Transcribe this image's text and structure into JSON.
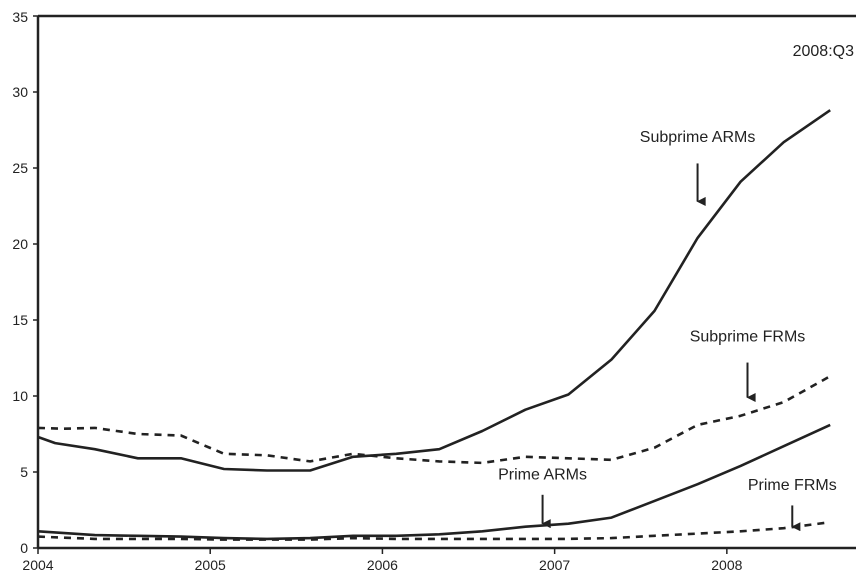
{
  "chart_data": {
    "type": "line",
    "title": "",
    "xlabel": "",
    "ylabel": "",
    "xlim": [
      2004.0,
      2008.75
    ],
    "ylim": [
      0,
      35
    ],
    "grid": false,
    "legend": "none",
    "x_ticks": [
      "2004",
      "2005",
      "2006",
      "2007",
      "2008"
    ],
    "y_ticks": [
      "0",
      "5",
      "10",
      "15",
      "20",
      "25",
      "30",
      "35"
    ],
    "period_label": "2008:Q3",
    "series": [
      {
        "label": "Subprime ARMs",
        "style": "solid",
        "color": "#222222",
        "points": [
          [
            2004.0,
            7.3
          ],
          [
            2004.1,
            6.9
          ],
          [
            2004.33,
            6.5
          ],
          [
            2004.58,
            5.9
          ],
          [
            2004.83,
            5.9
          ],
          [
            2005.08,
            5.2
          ],
          [
            2005.33,
            5.1
          ],
          [
            2005.58,
            5.1
          ],
          [
            2005.83,
            6.0
          ],
          [
            2006.08,
            6.2
          ],
          [
            2006.33,
            6.5
          ],
          [
            2006.58,
            7.7
          ],
          [
            2006.83,
            9.1
          ],
          [
            2007.08,
            10.1
          ],
          [
            2007.33,
            12.4
          ],
          [
            2007.58,
            15.6
          ],
          [
            2007.83,
            20.4
          ],
          [
            2008.08,
            24.1
          ],
          [
            2008.33,
            26.7
          ],
          [
            2008.6,
            28.8
          ]
        ]
      },
      {
        "label": "Subprime FRMs",
        "style": "dashed",
        "color": "#222222",
        "points": [
          [
            2004.0,
            7.9
          ],
          [
            2004.15,
            7.85
          ],
          [
            2004.33,
            7.9
          ],
          [
            2004.58,
            7.5
          ],
          [
            2004.83,
            7.4
          ],
          [
            2005.08,
            6.2
          ],
          [
            2005.33,
            6.1
          ],
          [
            2005.58,
            5.7
          ],
          [
            2005.83,
            6.2
          ],
          [
            2006.08,
            5.9
          ],
          [
            2006.33,
            5.7
          ],
          [
            2006.58,
            5.6
          ],
          [
            2006.83,
            6.0
          ],
          [
            2007.08,
            5.9
          ],
          [
            2007.33,
            5.8
          ],
          [
            2007.58,
            6.6
          ],
          [
            2007.83,
            8.1
          ],
          [
            2008.08,
            8.7
          ],
          [
            2008.33,
            9.6
          ],
          [
            2008.6,
            11.3
          ]
        ]
      },
      {
        "label": "Prime ARMs",
        "style": "solid",
        "color": "#222222",
        "points": [
          [
            2004.0,
            1.1
          ],
          [
            2004.33,
            0.85
          ],
          [
            2004.58,
            0.8
          ],
          [
            2004.83,
            0.75
          ],
          [
            2005.08,
            0.65
          ],
          [
            2005.33,
            0.6
          ],
          [
            2005.58,
            0.65
          ],
          [
            2005.83,
            0.8
          ],
          [
            2006.08,
            0.8
          ],
          [
            2006.33,
            0.9
          ],
          [
            2006.58,
            1.1
          ],
          [
            2006.83,
            1.4
          ],
          [
            2007.08,
            1.6
          ],
          [
            2007.33,
            2.0
          ],
          [
            2007.58,
            3.1
          ],
          [
            2007.83,
            4.2
          ],
          [
            2008.08,
            5.4
          ],
          [
            2008.33,
            6.7
          ],
          [
            2008.6,
            8.1
          ]
        ]
      },
      {
        "label": "Prime FRMs",
        "style": "dashed",
        "color": "#222222",
        "points": [
          [
            2004.0,
            0.75
          ],
          [
            2004.33,
            0.6
          ],
          [
            2004.58,
            0.6
          ],
          [
            2004.83,
            0.6
          ],
          [
            2005.08,
            0.55
          ],
          [
            2005.33,
            0.55
          ],
          [
            2005.58,
            0.55
          ],
          [
            2005.83,
            0.65
          ],
          [
            2006.08,
            0.6
          ],
          [
            2006.33,
            0.6
          ],
          [
            2006.58,
            0.6
          ],
          [
            2006.83,
            0.6
          ],
          [
            2007.08,
            0.6
          ],
          [
            2007.33,
            0.65
          ],
          [
            2007.58,
            0.8
          ],
          [
            2007.83,
            0.95
          ],
          [
            2008.08,
            1.1
          ],
          [
            2008.33,
            1.3
          ],
          [
            2008.6,
            1.7
          ]
        ]
      }
    ],
    "annotations": [
      {
        "name": "subprime-arms",
        "text": "Subprime ARMs",
        "text_x": 2007.83,
        "text_y": 26.7,
        "arrow_from": [
          2007.83,
          25.3
        ],
        "arrow_to": [
          2007.83,
          22.8
        ]
      },
      {
        "name": "subprime-frms",
        "text": "Subprime FRMs",
        "text_x": 2008.12,
        "text_y": 13.6,
        "arrow_from": [
          2008.12,
          12.2
        ],
        "arrow_to": [
          2008.12,
          9.9
        ]
      },
      {
        "name": "prime-arms",
        "text": "Prime ARMs",
        "text_x": 2006.93,
        "text_y": 4.5,
        "arrow_from": [
          2006.93,
          3.5
        ],
        "arrow_to": [
          2006.93,
          1.6
        ]
      },
      {
        "name": "prime-frms",
        "text": "Prime FRMs",
        "text_x": 2008.38,
        "text_y": 3.8,
        "arrow_from": [
          2008.38,
          2.8
        ],
        "arrow_to": [
          2008.38,
          1.4
        ]
      }
    ]
  }
}
